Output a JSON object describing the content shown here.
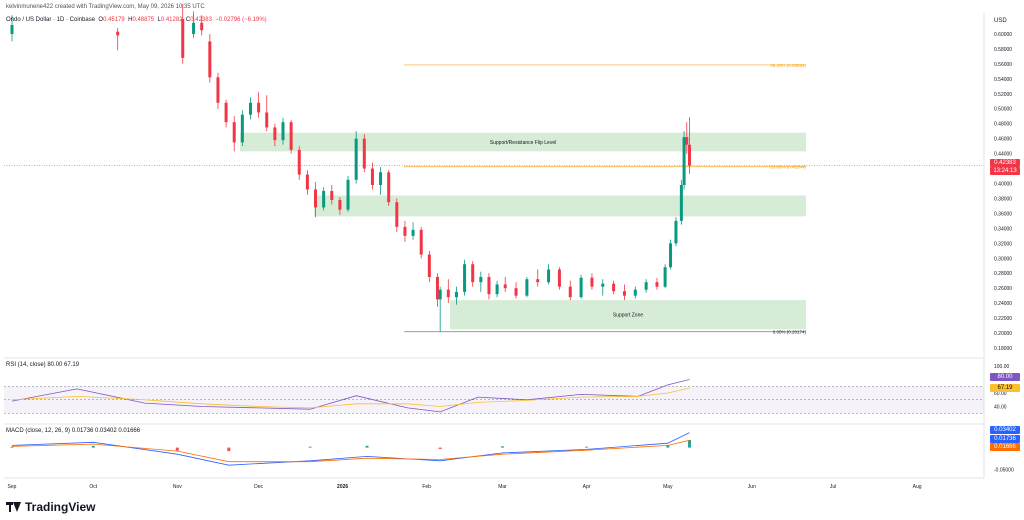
{
  "meta": {
    "publisher": "kelvinmunene422 created with TradingView.com, May 09, 2026 10:35 UTC",
    "symbol": "Ondo / US Dollar · 1D · Coinbase",
    "ohlc": {
      "o_label": "O",
      "o": "0.45179",
      "h_label": "H",
      "h": "0.48875",
      "l_label": "L",
      "l": "0.41282",
      "c_label": "C",
      "c": "0.42383",
      "change": "−0.02796 (−6.19%)"
    },
    "currency": "USD",
    "brand": "TradingView"
  },
  "colors": {
    "up": "#089981",
    "down": "#f23645",
    "zone": "#c8e6c9",
    "rsi": "#7e57c2",
    "rsi_ma": "#fbc02d",
    "macd": "#2962ff",
    "signal": "#ff6d00",
    "fib": "#f9a825"
  },
  "chart_data": [
    {
      "type": "candlestick",
      "title": "Ondo / US Dollar · 1D · Coinbase",
      "ylim": [
        0.18,
        0.62
      ],
      "y_ticks": [
        "0.60000",
        "0.58000",
        "0.56000",
        "0.54000",
        "0.52000",
        "0.50000",
        "0.48000",
        "0.46000",
        "0.44000",
        "0.42000",
        "0.40000",
        "0.38000",
        "0.36000",
        "0.34000",
        "0.32000",
        "0.30000",
        "0.28000",
        "0.26000",
        "0.24000",
        "0.22000",
        "0.20000",
        "0.18000"
      ],
      "x_ticks": [
        "Sep",
        "Oct",
        "Nov",
        "Dec",
        "2026",
        "Feb",
        "Mar",
        "Apr",
        "May",
        "Jun",
        "Jul",
        "Aug"
      ],
      "last_price": {
        "value": 0.42383,
        "label": "0.42383",
        "countdown": "13:24:13"
      },
      "zones": [
        {
          "label": "Support/Resistance Flip Level",
          "from": 0.443,
          "to": 0.468
        },
        {
          "label": "",
          "from": 0.356,
          "to": 0.384
        },
        {
          "label": "Support Zone",
          "from": 0.205,
          "to": 0.244
        }
      ],
      "fib_levels": [
        {
          "label": "38.20% (0.55859)",
          "value": 0.55859
        },
        {
          "label": "23.60% (0.42244)",
          "value": 0.42244
        },
        {
          "label": "0.00% (0.20174)",
          "value": 0.20174
        }
      ],
      "candles": [
        {
          "date": "2025-09-01",
          "o": 0.6,
          "h": 0.625,
          "l": 0.59,
          "c": 0.612
        },
        {
          "date": "2025-10-10",
          "o": 0.603,
          "h": 0.608,
          "l": 0.578,
          "c": 0.598
        },
        {
          "date": "2025-11-03",
          "o": 0.62,
          "h": 0.64,
          "l": 0.56,
          "c": 0.568
        },
        {
          "date": "2025-11-07",
          "o": 0.6,
          "h": 0.63,
          "l": 0.595,
          "c": 0.615
        },
        {
          "date": "2025-11-10",
          "o": 0.615,
          "h": 0.625,
          "l": 0.598,
          "c": 0.605
        },
        {
          "date": "2025-11-13",
          "o": 0.59,
          "h": 0.6,
          "l": 0.535,
          "c": 0.542
        },
        {
          "date": "2025-11-16",
          "o": 0.542,
          "h": 0.548,
          "l": 0.5,
          "c": 0.508
        },
        {
          "date": "2025-11-19",
          "o": 0.508,
          "h": 0.512,
          "l": 0.475,
          "c": 0.482
        },
        {
          "date": "2025-11-22",
          "o": 0.482,
          "h": 0.49,
          "l": 0.443,
          "c": 0.455
        },
        {
          "date": "2025-11-25",
          "o": 0.455,
          "h": 0.498,
          "l": 0.45,
          "c": 0.492
        },
        {
          "date": "2025-11-28",
          "o": 0.492,
          "h": 0.515,
          "l": 0.486,
          "c": 0.508
        },
        {
          "date": "2025-12-01",
          "o": 0.508,
          "h": 0.522,
          "l": 0.488,
          "c": 0.495
        },
        {
          "date": "2025-12-04",
          "o": 0.495,
          "h": 0.518,
          "l": 0.47,
          "c": 0.475
        },
        {
          "date": "2025-12-07",
          "o": 0.475,
          "h": 0.48,
          "l": 0.45,
          "c": 0.458
        },
        {
          "date": "2025-12-10",
          "o": 0.458,
          "h": 0.488,
          "l": 0.452,
          "c": 0.482
        },
        {
          "date": "2025-12-13",
          "o": 0.482,
          "h": 0.485,
          "l": 0.44,
          "c": 0.445
        },
        {
          "date": "2025-12-16",
          "o": 0.445,
          "h": 0.45,
          "l": 0.405,
          "c": 0.412
        },
        {
          "date": "2025-12-19",
          "o": 0.412,
          "h": 0.418,
          "l": 0.385,
          "c": 0.392
        },
        {
          "date": "2025-12-22",
          "o": 0.392,
          "h": 0.402,
          "l": 0.355,
          "c": 0.368
        },
        {
          "date": "2025-12-25",
          "o": 0.368,
          "h": 0.395,
          "l": 0.364,
          "c": 0.39
        },
        {
          "date": "2025-12-28",
          "o": 0.39,
          "h": 0.398,
          "l": 0.372,
          "c": 0.378
        },
        {
          "date": "2025-12-31",
          "o": 0.378,
          "h": 0.382,
          "l": 0.358,
          "c": 0.365
        },
        {
          "date": "2026-01-03",
          "o": 0.365,
          "h": 0.41,
          "l": 0.362,
          "c": 0.405
        },
        {
          "date": "2026-01-06",
          "o": 0.405,
          "h": 0.47,
          "l": 0.4,
          "c": 0.46
        },
        {
          "date": "2026-01-09",
          "o": 0.46,
          "h": 0.466,
          "l": 0.415,
          "c": 0.42
        },
        {
          "date": "2026-01-12",
          "o": 0.42,
          "h": 0.428,
          "l": 0.392,
          "c": 0.398
        },
        {
          "date": "2026-01-15",
          "o": 0.398,
          "h": 0.422,
          "l": 0.385,
          "c": 0.415
        },
        {
          "date": "2026-01-18",
          "o": 0.415,
          "h": 0.418,
          "l": 0.37,
          "c": 0.375
        },
        {
          "date": "2026-01-21",
          "o": 0.375,
          "h": 0.38,
          "l": 0.335,
          "c": 0.342
        },
        {
          "date": "2026-01-24",
          "o": 0.342,
          "h": 0.35,
          "l": 0.322,
          "c": 0.33
        },
        {
          "date": "2026-01-27",
          "o": 0.33,
          "h": 0.348,
          "l": 0.325,
          "c": 0.338
        },
        {
          "date": "2026-01-30",
          "o": 0.338,
          "h": 0.342,
          "l": 0.3,
          "c": 0.305
        },
        {
          "date": "2026-02-02",
          "o": 0.305,
          "h": 0.31,
          "l": 0.268,
          "c": 0.275
        },
        {
          "date": "2026-02-05",
          "o": 0.275,
          "h": 0.28,
          "l": 0.235,
          "c": 0.245
        },
        {
          "date": "2026-02-06",
          "o": 0.245,
          "h": 0.262,
          "l": 0.202,
          "c": 0.258
        },
        {
          "date": "2026-02-09",
          "o": 0.258,
          "h": 0.272,
          "l": 0.24,
          "c": 0.248
        },
        {
          "date": "2026-02-12",
          "o": 0.248,
          "h": 0.262,
          "l": 0.238,
          "c": 0.255
        },
        {
          "date": "2026-02-15",
          "o": 0.255,
          "h": 0.298,
          "l": 0.25,
          "c": 0.292
        },
        {
          "date": "2026-02-18",
          "o": 0.292,
          "h": 0.296,
          "l": 0.262,
          "c": 0.268
        },
        {
          "date": "2026-02-21",
          "o": 0.268,
          "h": 0.282,
          "l": 0.255,
          "c": 0.275
        },
        {
          "date": "2026-02-24",
          "o": 0.275,
          "h": 0.28,
          "l": 0.245,
          "c": 0.252
        },
        {
          "date": "2026-02-27",
          "o": 0.252,
          "h": 0.27,
          "l": 0.248,
          "c": 0.265
        },
        {
          "date": "2026-03-02",
          "o": 0.265,
          "h": 0.275,
          "l": 0.255,
          "c": 0.26
        },
        {
          "date": "2026-03-06",
          "o": 0.26,
          "h": 0.268,
          "l": 0.246,
          "c": 0.25
        },
        {
          "date": "2026-03-10",
          "o": 0.25,
          "h": 0.275,
          "l": 0.248,
          "c": 0.272
        },
        {
          "date": "2026-03-14",
          "o": 0.272,
          "h": 0.285,
          "l": 0.262,
          "c": 0.268
        },
        {
          "date": "2026-03-18",
          "o": 0.268,
          "h": 0.292,
          "l": 0.265,
          "c": 0.285
        },
        {
          "date": "2026-03-22",
          "o": 0.285,
          "h": 0.288,
          "l": 0.258,
          "c": 0.262
        },
        {
          "date": "2026-03-26",
          "o": 0.262,
          "h": 0.27,
          "l": 0.244,
          "c": 0.248
        },
        {
          "date": "2026-03-30",
          "o": 0.248,
          "h": 0.278,
          "l": 0.246,
          "c": 0.274
        },
        {
          "date": "2026-04-03",
          "o": 0.274,
          "h": 0.28,
          "l": 0.258,
          "c": 0.262
        },
        {
          "date": "2026-04-07",
          "o": 0.262,
          "h": 0.272,
          "l": 0.25,
          "c": 0.266
        },
        {
          "date": "2026-04-11",
          "o": 0.266,
          "h": 0.27,
          "l": 0.252,
          "c": 0.256
        },
        {
          "date": "2026-04-15",
          "o": 0.256,
          "h": 0.265,
          "l": 0.244,
          "c": 0.25
        },
        {
          "date": "2026-04-19",
          "o": 0.25,
          "h": 0.262,
          "l": 0.246,
          "c": 0.258
        },
        {
          "date": "2026-04-23",
          "o": 0.258,
          "h": 0.272,
          "l": 0.254,
          "c": 0.268
        },
        {
          "date": "2026-04-27",
          "o": 0.268,
          "h": 0.274,
          "l": 0.258,
          "c": 0.262
        },
        {
          "date": "2026-04-30",
          "o": 0.262,
          "h": 0.292,
          "l": 0.26,
          "c": 0.288
        },
        {
          "date": "2026-05-02",
          "o": 0.288,
          "h": 0.325,
          "l": 0.285,
          "c": 0.32
        },
        {
          "date": "2026-05-04",
          "o": 0.32,
          "h": 0.355,
          "l": 0.316,
          "c": 0.35
        },
        {
          "date": "2026-05-06",
          "o": 0.35,
          "h": 0.405,
          "l": 0.345,
          "c": 0.398
        },
        {
          "date": "2026-05-07",
          "o": 0.398,
          "h": 0.47,
          "l": 0.392,
          "c": 0.462
        },
        {
          "date": "2026-05-08",
          "o": 0.462,
          "h": 0.482,
          "l": 0.44,
          "c": 0.452
        },
        {
          "date": "2026-05-09",
          "o": 0.45179,
          "h": 0.48875,
          "l": 0.41282,
          "c": 0.42383
        }
      ]
    },
    {
      "type": "line",
      "title": "RSI (14, close) 80.00 67.19",
      "ylim": [
        20,
        100
      ],
      "y_ticks": [
        "100.00",
        "60.00",
        "40.00"
      ],
      "bands": {
        "upper": 70,
        "middle": 50,
        "lower": 30
      },
      "last_values": [
        {
          "label": "80.00",
          "value": 80.0
        },
        {
          "label": "67.19",
          "value": 67.19
        }
      ],
      "series": [
        {
          "name": "RSI",
          "x": [
            "2025-09-01",
            "2025-09-25",
            "2025-10-20",
            "2025-11-10",
            "2025-12-01",
            "2025-12-20",
            "2026-01-06",
            "2026-01-25",
            "2026-02-06",
            "2026-02-20",
            "2026-03-10",
            "2026-03-30",
            "2026-04-20",
            "2026-05-01",
            "2026-05-09"
          ],
          "values": [
            48,
            66,
            45,
            40,
            38,
            36,
            56,
            38,
            32,
            54,
            50,
            58,
            55,
            72,
            80
          ]
        },
        {
          "name": "RSI-based MA",
          "x": [
            "2025-09-01",
            "2025-09-25",
            "2025-10-20",
            "2025-11-10",
            "2025-12-01",
            "2025-12-20",
            "2026-01-06",
            "2026-01-25",
            "2026-02-06",
            "2026-02-20",
            "2026-03-10",
            "2026-03-30",
            "2026-04-20",
            "2026-05-01",
            "2026-05-09"
          ],
          "values": [
            50,
            55,
            50,
            44,
            40,
            38,
            44,
            44,
            40,
            46,
            49,
            54,
            55,
            60,
            67.19
          ]
        }
      ]
    },
    {
      "type": "bar",
      "title": "MACD (close, 12, 26, 9) 0.01736 0.03402 0.01666",
      "ylim": [
        -0.06,
        0.04
      ],
      "y_ticks": [
        "-0.05000"
      ],
      "last_values": [
        {
          "label": "0.03402",
          "value": 0.03402
        },
        {
          "label": "0.01736",
          "value": 0.01736
        },
        {
          "label": "0.01666",
          "value": 0.01666
        }
      ],
      "series": [
        {
          "name": "MACD",
          "x": [
            "2025-09-01",
            "2025-10-01",
            "2025-11-01",
            "2025-11-20",
            "2025-12-20",
            "2026-01-10",
            "2026-02-06",
            "2026-03-01",
            "2026-04-01",
            "2026-05-01",
            "2026-05-09"
          ],
          "values": [
            0.005,
            0.012,
            -0.015,
            -0.04,
            -0.03,
            -0.02,
            -0.03,
            -0.012,
            -0.004,
            0.01,
            0.03402
          ]
        },
        {
          "name": "Signal",
          "x": [
            "2025-09-01",
            "2025-10-01",
            "2025-11-01",
            "2025-11-20",
            "2025-12-20",
            "2026-01-10",
            "2026-02-06",
            "2026-03-01",
            "2026-04-01",
            "2026-05-01",
            "2026-05-09"
          ],
          "values": [
            0.003,
            0.008,
            -0.008,
            -0.032,
            -0.032,
            -0.024,
            -0.027,
            -0.015,
            -0.006,
            0.005,
            0.01666
          ]
        },
        {
          "name": "Histogram",
          "x": [
            "2025-09-01",
            "2025-10-01",
            "2025-11-01",
            "2025-11-20",
            "2025-12-20",
            "2026-01-10",
            "2026-02-06",
            "2026-03-01",
            "2026-04-01",
            "2026-05-01",
            "2026-05-09"
          ],
          "values": [
            0.002,
            0.004,
            -0.007,
            -0.008,
            0.002,
            0.004,
            -0.003,
            0.003,
            0.002,
            0.005,
            0.01736
          ]
        }
      ]
    }
  ]
}
